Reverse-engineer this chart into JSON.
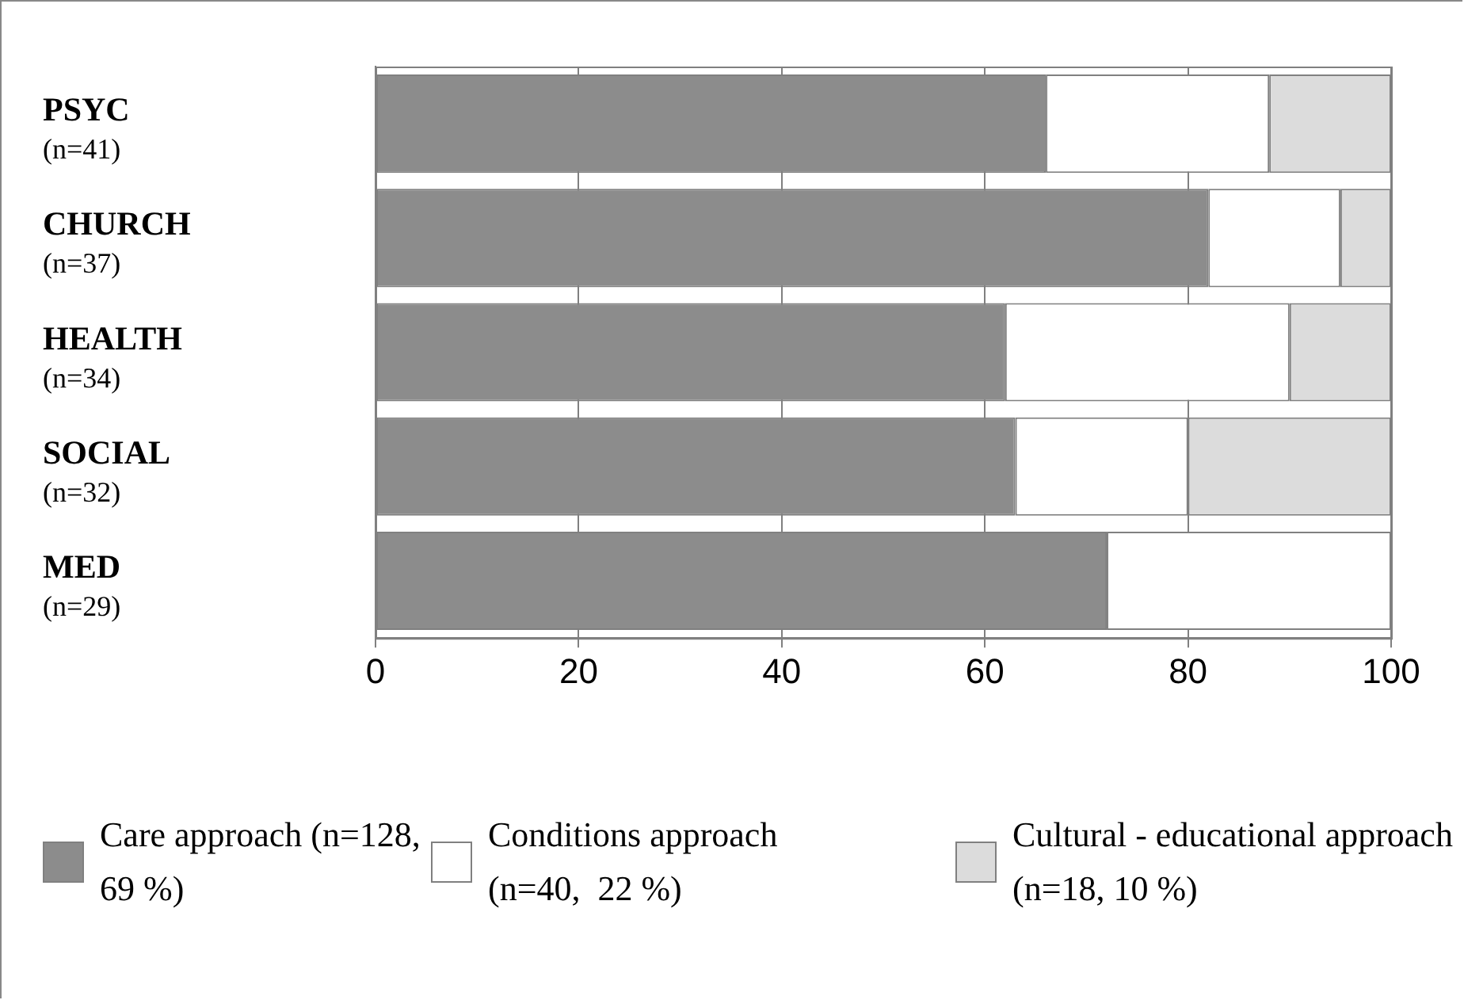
{
  "chart_data": {
    "type": "bar",
    "orientation": "horizontal",
    "stacked": true,
    "categories": [
      "PSYC\n(n=41)",
      "CHURCH\n(n=37)",
      "HEALTH\n(n=34)",
      "SOCIAL\n(n=32)",
      "MED\n(n=29)"
    ],
    "series": [
      {
        "name": "Care approach (n=128,  69 %)",
        "color": "#8c8c8c",
        "values": [
          66,
          82,
          62,
          63,
          72
        ]
      },
      {
        "name": "Conditions approach (n=40,  22 %)",
        "color": "#ffffff",
        "values": [
          22,
          13,
          28,
          17,
          28
        ]
      },
      {
        "name": "Cultural - educational approach (n=18, 10 %)",
        "color": "#dcdcdc",
        "values": [
          12,
          5,
          10,
          20,
          0
        ]
      }
    ],
    "xlim": [
      0,
      100
    ],
    "xticks": [
      0,
      20,
      40,
      60,
      80,
      100
    ],
    "grid": "x",
    "legend": "bottom"
  }
}
